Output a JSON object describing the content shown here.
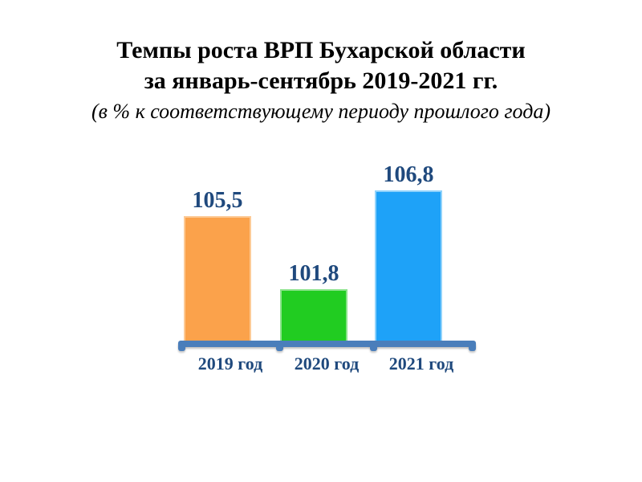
{
  "page": {
    "background": "#ffffff"
  },
  "chart_data": {
    "type": "bar",
    "title_line1": "Темпы роста ВРП Бухарской области",
    "title_line2": "за январь-сентябрь 2019-2021 гг.",
    "subtitle": "(в % к соответствующему периоду прошлого года)",
    "categories": [
      "2019 год",
      "2020 год",
      "2021 год"
    ],
    "values": [
      105.5,
      101.8,
      106.8
    ],
    "value_labels": [
      "105,5",
      "101,8",
      "106,8"
    ],
    "ylim": [
      99.2,
      107.0
    ],
    "grid": false,
    "legend": false,
    "xlabel": "",
    "ylabel": "",
    "colors": {
      "bars": [
        "#FBA24B",
        "#21CC21",
        "#1EA2F8"
      ],
      "bar_borders": [
        "#FDCA95",
        "#8BE38B",
        "#8FD2FB"
      ],
      "axis": "#4A7EBB",
      "value_labels": "#1F497D",
      "category_labels": "#1F497D",
      "title": "#000000"
    }
  }
}
